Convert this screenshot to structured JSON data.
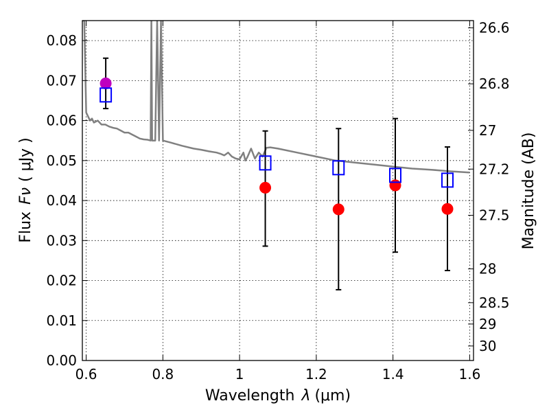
{
  "chart_data": {
    "type": "scatter",
    "xlabel_text": "Wavelength",
    "xlabel_symbol": "λ",
    "xlabel_unit": "(μm)",
    "ylabel_text": "Flux",
    "ylabel_symbol": "Fν",
    "ylabel_unit": "( μJy )",
    "y2label": "Magnitude (AB)",
    "xlim": [
      0.59,
      1.61
    ],
    "ylim": [
      0.0,
      0.085
    ],
    "grid": true,
    "x_ticks": [
      {
        "value": 0.6,
        "label": "0.6"
      },
      {
        "value": 0.8,
        "label": "0.8"
      },
      {
        "value": 1.0,
        "label": "1"
      },
      {
        "value": 1.2,
        "label": "1.2"
      },
      {
        "value": 1.4,
        "label": "1.4"
      },
      {
        "value": 1.6,
        "label": "1.6"
      }
    ],
    "y_ticks": [
      {
        "value": 0.0,
        "label": "0.00"
      },
      {
        "value": 0.01,
        "label": "0.01"
      },
      {
        "value": 0.02,
        "label": "0.02"
      },
      {
        "value": 0.03,
        "label": "0.03"
      },
      {
        "value": 0.04,
        "label": "0.04"
      },
      {
        "value": 0.05,
        "label": "0.05"
      },
      {
        "value": 0.06,
        "label": "0.06"
      },
      {
        "value": 0.07,
        "label": "0.07"
      },
      {
        "value": 0.08,
        "label": "0.08"
      }
    ],
    "mag_ticks": [
      {
        "value": 26.6,
        "label": "26.6"
      },
      {
        "value": 26.8,
        "label": "26.8"
      },
      {
        "value": 27.0,
        "label": "27"
      },
      {
        "value": 27.2,
        "label": "27.2"
      },
      {
        "value": 27.5,
        "label": "27.5"
      },
      {
        "value": 28.0,
        "label": "28"
      },
      {
        "value": 28.5,
        "label": "28.5"
      },
      {
        "value": 29.0,
        "label": "29"
      },
      {
        "value": 30.0,
        "label": "30"
      }
    ],
    "series": [
      {
        "name": "observed",
        "marker": "circle",
        "color": "#ff0000",
        "points": [
          {
            "x": 1.067,
            "y": 0.0432,
            "yerr_low": 0.0286,
            "yerr_high": 0.0574
          },
          {
            "x": 1.258,
            "y": 0.0378,
            "yerr_low": 0.0177,
            "yerr_high": 0.058
          },
          {
            "x": 1.406,
            "y": 0.0438,
            "yerr_low": 0.0271,
            "yerr_high": 0.0605
          },
          {
            "x": 1.542,
            "y": 0.0379,
            "yerr_low": 0.0225,
            "yerr_high": 0.0534
          }
        ]
      },
      {
        "name": "observed-optical",
        "marker": "circle",
        "color": "#bf00bf",
        "points": [
          {
            "x": 0.651,
            "y": 0.0693,
            "yerr_low": 0.063,
            "yerr_high": 0.0756
          }
        ]
      },
      {
        "name": "model-photometry",
        "marker": "square-open",
        "color": "#0000ff",
        "points": [
          {
            "x": 0.651,
            "y": 0.0664
          },
          {
            "x": 1.067,
            "y": 0.0494
          },
          {
            "x": 1.258,
            "y": 0.0482
          },
          {
            "x": 1.406,
            "y": 0.0463
          },
          {
            "x": 1.542,
            "y": 0.0451
          }
        ]
      },
      {
        "name": "model-sed",
        "marker": "line",
        "color": "#808080",
        "x": [
          0.59,
          0.595,
          0.6,
          0.605,
          0.61,
          0.615,
          0.62,
          0.63,
          0.64,
          0.65,
          0.66,
          0.67,
          0.68,
          0.69,
          0.7,
          0.71,
          0.72,
          0.73,
          0.74,
          0.75,
          0.76,
          0.768,
          0.77,
          0.772,
          0.78,
          0.785,
          0.79,
          0.795,
          0.8,
          0.82,
          0.85,
          0.88,
          0.9,
          0.92,
          0.94,
          0.95,
          0.96,
          0.97,
          0.98,
          0.99,
          1.0,
          1.01,
          1.015,
          1.02,
          1.03,
          1.04,
          1.05,
          1.06,
          1.07,
          1.08,
          1.1,
          1.15,
          1.2,
          1.25,
          1.3,
          1.35,
          1.4,
          1.45,
          1.5,
          1.55,
          1.6
        ],
        "y": [
          0.085,
          0.085,
          0.062,
          0.061,
          0.06,
          0.0605,
          0.0595,
          0.06,
          0.059,
          0.059,
          0.0585,
          0.0582,
          0.058,
          0.0575,
          0.057,
          0.057,
          0.0565,
          0.056,
          0.0555,
          0.0553,
          0.0552,
          0.055,
          0.085,
          0.055,
          0.055,
          0.085,
          0.055,
          0.085,
          0.055,
          0.0545,
          0.0537,
          0.053,
          0.0527,
          0.0523,
          0.052,
          0.0517,
          0.0513,
          0.052,
          0.051,
          0.0505,
          0.0503,
          0.052,
          0.05,
          0.0508,
          0.053,
          0.0505,
          0.052,
          0.051,
          0.0532,
          0.0533,
          0.053,
          0.052,
          0.051,
          0.05,
          0.0495,
          0.049,
          0.0485,
          0.048,
          0.0477,
          0.0473,
          0.047
        ]
      }
    ]
  }
}
